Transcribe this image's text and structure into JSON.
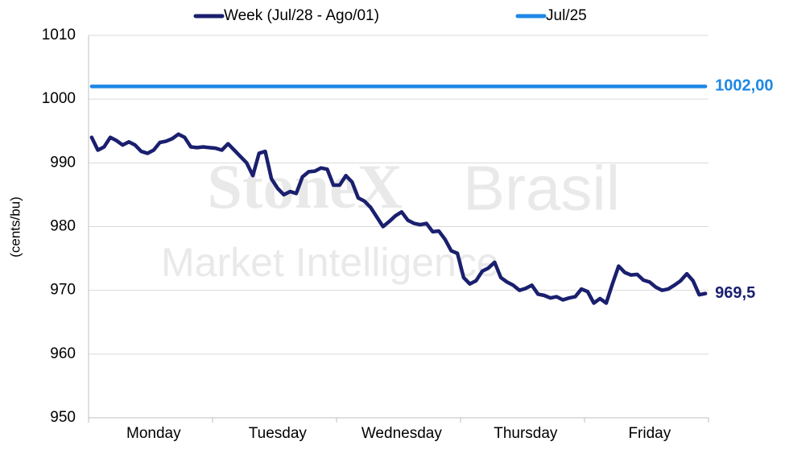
{
  "chart_data": {
    "type": "line",
    "watermark": [
      "StoneX",
      "Brasil",
      "Market Intelligence"
    ],
    "y_label": "(cents/bu)",
    "categories": [
      null,
      null,
      null,
      null,
      null,
      null,
      null,
      null,
      null,
      null,
      "Monday",
      null,
      null,
      null,
      null,
      null,
      null,
      null,
      null,
      null,
      null,
      null,
      null,
      null,
      null,
      null,
      null,
      null,
      null,
      null,
      "Tuesday",
      null,
      null,
      null,
      null,
      null,
      null,
      null,
      null,
      null,
      null,
      null,
      null,
      null,
      null,
      null,
      null,
      null,
      null,
      null,
      "Wednesday",
      null,
      null,
      null,
      null,
      null,
      null,
      null,
      null,
      null,
      null,
      null,
      null,
      null,
      null,
      null,
      null,
      null,
      null,
      null,
      "Thursday",
      null,
      null,
      null,
      null,
      null,
      null,
      null,
      null,
      null,
      null,
      null,
      null,
      null,
      null,
      null,
      null,
      null,
      null,
      null,
      "Friday",
      null,
      null,
      null,
      null,
      null,
      null,
      null,
      null,
      null
    ],
    "series": [
      {
        "name": "Week (Jul/28 - Ago/01)",
        "color": "#1a1f6e",
        "values": [
          994,
          992,
          992.5,
          994,
          993.5,
          992.8,
          993.3,
          992.8,
          991.8,
          991.5,
          992,
          993.2,
          993.4,
          993.8,
          994.5,
          994,
          992.5,
          992.4,
          992.5,
          992.4,
          992.3,
          992,
          993,
          992,
          991,
          990,
          988,
          991.5,
          991.8,
          987.5,
          986,
          985,
          985.5,
          985.2,
          987.8,
          988.6,
          988.7,
          989.2,
          989,
          986.5,
          986.5,
          988,
          987,
          984.5,
          984,
          983,
          981.5,
          980,
          980.8,
          981.7,
          982.3,
          981,
          980.5,
          980.3,
          980.5,
          979.2,
          979.3,
          978,
          976.2,
          975.8,
          972,
          971,
          971.5,
          973,
          973.5,
          974.4,
          972,
          971.3,
          970.8,
          970,
          970.3,
          970.8,
          969.4,
          969.2,
          968.8,
          969,
          968.5,
          968.8,
          969,
          970.2,
          969.8,
          968,
          968.7,
          968,
          971,
          973.8,
          972.8,
          972.4,
          972.5,
          971.6,
          971.3,
          970.5,
          970,
          970.2,
          970.8,
          971.5,
          972.6,
          971.5,
          969.3,
          969.5
        ],
        "value_labels": [
          null,
          null,
          null,
          null,
          null,
          null,
          null,
          null,
          null,
          null,
          null,
          null,
          null,
          null,
          null,
          null,
          null,
          null,
          null,
          null,
          null,
          null,
          null,
          null,
          null,
          null,
          null,
          null,
          null,
          null,
          null,
          null,
          null,
          null,
          null,
          null,
          null,
          null,
          null,
          null,
          null,
          null,
          null,
          null,
          null,
          null,
          null,
          null,
          null,
          null,
          null,
          null,
          null,
          null,
          null,
          null,
          null,
          null,
          null,
          null,
          null,
          null,
          null,
          null,
          null,
          null,
          null,
          null,
          null,
          null,
          null,
          null,
          null,
          null,
          null,
          null,
          null,
          null,
          null,
          null,
          null,
          null,
          null,
          null,
          null,
          null,
          null,
          null,
          null,
          null,
          null,
          null,
          null,
          null,
          null,
          null,
          null,
          null,
          null,
          "969,5"
        ]
      },
      {
        "name": "Jul/25",
        "color": "#1e88e5",
        "values": [
          1002,
          1002,
          1002,
          1002,
          1002,
          1002,
          1002,
          1002,
          1002,
          1002,
          1002,
          1002,
          1002,
          1002,
          1002,
          1002,
          1002,
          1002,
          1002,
          1002,
          1002,
          1002,
          1002,
          1002,
          1002,
          1002,
          1002,
          1002,
          1002,
          1002,
          1002,
          1002,
          1002,
          1002,
          1002,
          1002,
          1002,
          1002,
          1002,
          1002,
          1002,
          1002,
          1002,
          1002,
          1002,
          1002,
          1002,
          1002,
          1002,
          1002,
          1002,
          1002,
          1002,
          1002,
          1002,
          1002,
          1002,
          1002,
          1002,
          1002,
          1002,
          1002,
          1002,
          1002,
          1002,
          1002,
          1002,
          1002,
          1002,
          1002,
          1002,
          1002,
          1002,
          1002,
          1002,
          1002,
          1002,
          1002,
          1002,
          1002,
          1002,
          1002,
          1002,
          1002,
          1002,
          1002,
          1002,
          1002,
          1002,
          1002,
          1002,
          1002,
          1002,
          1002,
          1002,
          1002,
          1002,
          1002,
          1002,
          1002
        ],
        "value_labels": [
          null,
          null,
          null,
          null,
          null,
          null,
          null,
          null,
          null,
          null,
          null,
          null,
          null,
          null,
          null,
          null,
          null,
          null,
          null,
          null,
          null,
          null,
          null,
          null,
          null,
          null,
          null,
          null,
          null,
          null,
          null,
          null,
          null,
          null,
          null,
          null,
          null,
          null,
          null,
          null,
          null,
          null,
          null,
          null,
          null,
          null,
          null,
          null,
          null,
          null,
          null,
          null,
          null,
          null,
          null,
          null,
          null,
          null,
          null,
          null,
          null,
          null,
          null,
          null,
          null,
          null,
          null,
          null,
          null,
          null,
          null,
          null,
          null,
          null,
          null,
          null,
          null,
          null,
          null,
          null,
          null,
          null,
          null,
          null,
          null,
          null,
          null,
          null,
          null,
          null,
          null,
          null,
          null,
          null,
          null,
          null,
          null,
          null,
          null,
          "1002,00"
        ]
      }
    ],
    "ylim": [
      950,
      1010
    ],
    "yticks": [
      950,
      960,
      970,
      980,
      990,
      1000,
      1010
    ],
    "grid": true,
    "legend": "top"
  }
}
